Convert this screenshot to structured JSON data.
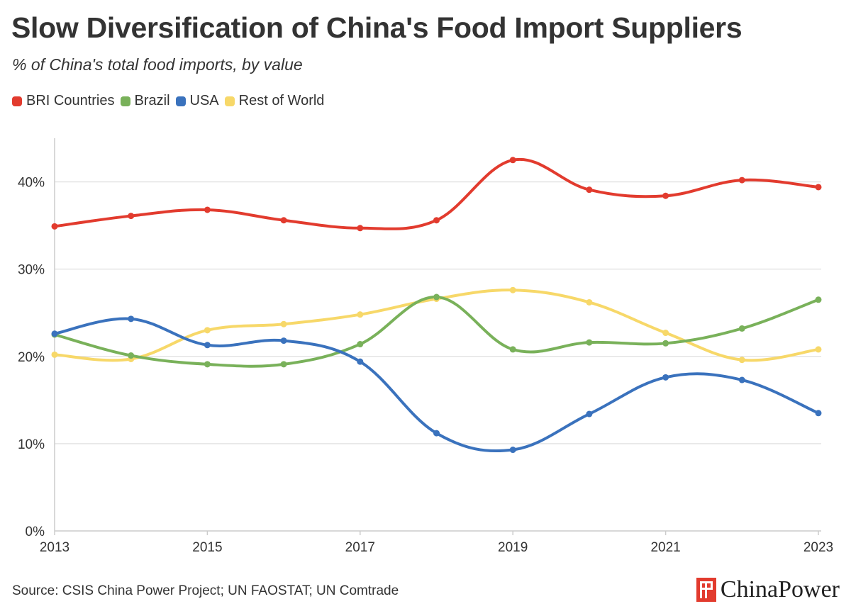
{
  "header": {
    "title": "Slow Diversification of China's Food Import Suppliers",
    "subtitle": "% of China's total food imports, by value"
  },
  "footer": {
    "source": "Source: CSIS China Power Project; UN FAOSTAT; UN Comtrade",
    "brand": "ChinaPower",
    "brand_icon": "chinapower-logo-icon"
  },
  "chart_data": {
    "type": "line",
    "title": "Slow Diversification of China's Food Import Suppliers",
    "subtitle": "% of China's total food imports, by value",
    "x": [
      2013,
      2014,
      2015,
      2016,
      2017,
      2018,
      2019,
      2020,
      2021,
      2022,
      2023
    ],
    "x_tick_labels": [
      "2013",
      "2015",
      "2017",
      "2019",
      "2021",
      "2023"
    ],
    "x_ticks": [
      2013,
      2015,
      2017,
      2019,
      2021,
      2023
    ],
    "y_ticks": [
      0,
      10,
      20,
      30,
      40
    ],
    "y_tick_labels": [
      "0%",
      "10%",
      "20%",
      "30%",
      "40%"
    ],
    "ylim": [
      0,
      45
    ],
    "xlim": [
      2013,
      2023
    ],
    "grid": "horizontal",
    "legend_position": "top-left",
    "series": [
      {
        "name": "BRI Countries",
        "color": "#e23b2e",
        "values": [
          34.9,
          36.1,
          36.8,
          35.6,
          34.7,
          35.6,
          42.5,
          39.1,
          38.4,
          40.2,
          39.4
        ]
      },
      {
        "name": "Brazil",
        "color": "#79b15a",
        "values": [
          22.5,
          20.1,
          19.1,
          19.1,
          21.4,
          26.8,
          20.8,
          21.6,
          21.5,
          23.2,
          26.5
        ]
      },
      {
        "name": "USA",
        "color": "#3a72bd",
        "values": [
          22.6,
          24.3,
          21.3,
          21.8,
          19.4,
          11.2,
          9.3,
          13.4,
          17.6,
          17.3,
          13.5
        ]
      },
      {
        "name": "Rest of World",
        "color": "#f7d869",
        "values": [
          20.2,
          19.7,
          23.0,
          23.7,
          24.8,
          26.6,
          27.6,
          26.2,
          22.7,
          19.6,
          20.8
        ]
      }
    ]
  }
}
